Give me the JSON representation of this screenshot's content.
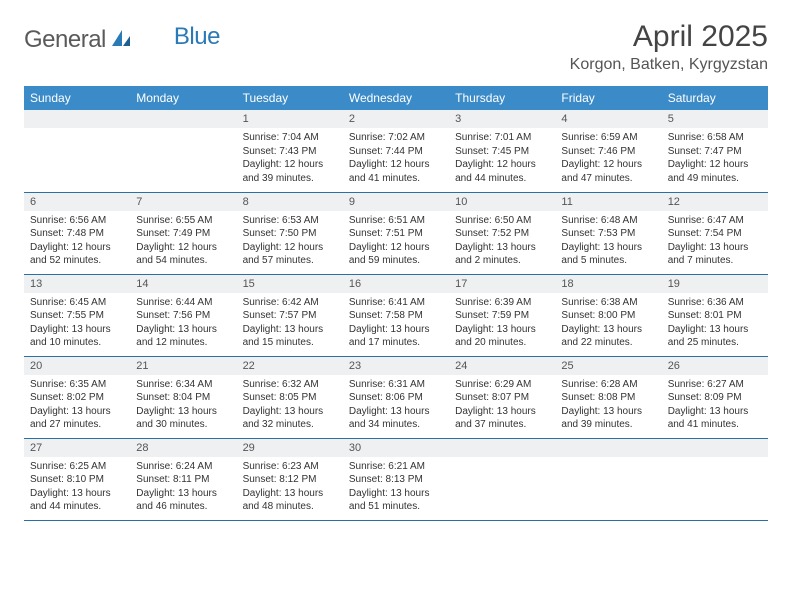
{
  "brand": {
    "part1": "General",
    "part2": "Blue"
  },
  "title": "April 2025",
  "location": "Korgon, Batken, Kyrgyzstan",
  "colors": {
    "header_bg": "#3b8bc9",
    "header_text": "#ffffff",
    "daynum_bg": "#eef0f2",
    "row_border": "#2b6fa3",
    "logo_gray": "#5a5a5a",
    "logo_blue": "#2a7ab8"
  },
  "fonts": {
    "month_title_pt": 30,
    "location_pt": 16,
    "dayhead_pt": 12,
    "daynum_pt": 11,
    "body_pt": 10
  },
  "day_headers": [
    "Sunday",
    "Monday",
    "Tuesday",
    "Wednesday",
    "Thursday",
    "Friday",
    "Saturday"
  ],
  "weeks": [
    [
      null,
      null,
      {
        "n": "1",
        "sr": "Sunrise: 7:04 AM",
        "ss": "Sunset: 7:43 PM",
        "dl": "Daylight: 12 hours and 39 minutes."
      },
      {
        "n": "2",
        "sr": "Sunrise: 7:02 AM",
        "ss": "Sunset: 7:44 PM",
        "dl": "Daylight: 12 hours and 41 minutes."
      },
      {
        "n": "3",
        "sr": "Sunrise: 7:01 AM",
        "ss": "Sunset: 7:45 PM",
        "dl": "Daylight: 12 hours and 44 minutes."
      },
      {
        "n": "4",
        "sr": "Sunrise: 6:59 AM",
        "ss": "Sunset: 7:46 PM",
        "dl": "Daylight: 12 hours and 47 minutes."
      },
      {
        "n": "5",
        "sr": "Sunrise: 6:58 AM",
        "ss": "Sunset: 7:47 PM",
        "dl": "Daylight: 12 hours and 49 minutes."
      }
    ],
    [
      {
        "n": "6",
        "sr": "Sunrise: 6:56 AM",
        "ss": "Sunset: 7:48 PM",
        "dl": "Daylight: 12 hours and 52 minutes."
      },
      {
        "n": "7",
        "sr": "Sunrise: 6:55 AM",
        "ss": "Sunset: 7:49 PM",
        "dl": "Daylight: 12 hours and 54 minutes."
      },
      {
        "n": "8",
        "sr": "Sunrise: 6:53 AM",
        "ss": "Sunset: 7:50 PM",
        "dl": "Daylight: 12 hours and 57 minutes."
      },
      {
        "n": "9",
        "sr": "Sunrise: 6:51 AM",
        "ss": "Sunset: 7:51 PM",
        "dl": "Daylight: 12 hours and 59 minutes."
      },
      {
        "n": "10",
        "sr": "Sunrise: 6:50 AM",
        "ss": "Sunset: 7:52 PM",
        "dl": "Daylight: 13 hours and 2 minutes."
      },
      {
        "n": "11",
        "sr": "Sunrise: 6:48 AM",
        "ss": "Sunset: 7:53 PM",
        "dl": "Daylight: 13 hours and 5 minutes."
      },
      {
        "n": "12",
        "sr": "Sunrise: 6:47 AM",
        "ss": "Sunset: 7:54 PM",
        "dl": "Daylight: 13 hours and 7 minutes."
      }
    ],
    [
      {
        "n": "13",
        "sr": "Sunrise: 6:45 AM",
        "ss": "Sunset: 7:55 PM",
        "dl": "Daylight: 13 hours and 10 minutes."
      },
      {
        "n": "14",
        "sr": "Sunrise: 6:44 AM",
        "ss": "Sunset: 7:56 PM",
        "dl": "Daylight: 13 hours and 12 minutes."
      },
      {
        "n": "15",
        "sr": "Sunrise: 6:42 AM",
        "ss": "Sunset: 7:57 PM",
        "dl": "Daylight: 13 hours and 15 minutes."
      },
      {
        "n": "16",
        "sr": "Sunrise: 6:41 AM",
        "ss": "Sunset: 7:58 PM",
        "dl": "Daylight: 13 hours and 17 minutes."
      },
      {
        "n": "17",
        "sr": "Sunrise: 6:39 AM",
        "ss": "Sunset: 7:59 PM",
        "dl": "Daylight: 13 hours and 20 minutes."
      },
      {
        "n": "18",
        "sr": "Sunrise: 6:38 AM",
        "ss": "Sunset: 8:00 PM",
        "dl": "Daylight: 13 hours and 22 minutes."
      },
      {
        "n": "19",
        "sr": "Sunrise: 6:36 AM",
        "ss": "Sunset: 8:01 PM",
        "dl": "Daylight: 13 hours and 25 minutes."
      }
    ],
    [
      {
        "n": "20",
        "sr": "Sunrise: 6:35 AM",
        "ss": "Sunset: 8:02 PM",
        "dl": "Daylight: 13 hours and 27 minutes."
      },
      {
        "n": "21",
        "sr": "Sunrise: 6:34 AM",
        "ss": "Sunset: 8:04 PM",
        "dl": "Daylight: 13 hours and 30 minutes."
      },
      {
        "n": "22",
        "sr": "Sunrise: 6:32 AM",
        "ss": "Sunset: 8:05 PM",
        "dl": "Daylight: 13 hours and 32 minutes."
      },
      {
        "n": "23",
        "sr": "Sunrise: 6:31 AM",
        "ss": "Sunset: 8:06 PM",
        "dl": "Daylight: 13 hours and 34 minutes."
      },
      {
        "n": "24",
        "sr": "Sunrise: 6:29 AM",
        "ss": "Sunset: 8:07 PM",
        "dl": "Daylight: 13 hours and 37 minutes."
      },
      {
        "n": "25",
        "sr": "Sunrise: 6:28 AM",
        "ss": "Sunset: 8:08 PM",
        "dl": "Daylight: 13 hours and 39 minutes."
      },
      {
        "n": "26",
        "sr": "Sunrise: 6:27 AM",
        "ss": "Sunset: 8:09 PM",
        "dl": "Daylight: 13 hours and 41 minutes."
      }
    ],
    [
      {
        "n": "27",
        "sr": "Sunrise: 6:25 AM",
        "ss": "Sunset: 8:10 PM",
        "dl": "Daylight: 13 hours and 44 minutes."
      },
      {
        "n": "28",
        "sr": "Sunrise: 6:24 AM",
        "ss": "Sunset: 8:11 PM",
        "dl": "Daylight: 13 hours and 46 minutes."
      },
      {
        "n": "29",
        "sr": "Sunrise: 6:23 AM",
        "ss": "Sunset: 8:12 PM",
        "dl": "Daylight: 13 hours and 48 minutes."
      },
      {
        "n": "30",
        "sr": "Sunrise: 6:21 AM",
        "ss": "Sunset: 8:13 PM",
        "dl": "Daylight: 13 hours and 51 minutes."
      },
      null,
      null,
      null
    ]
  ]
}
